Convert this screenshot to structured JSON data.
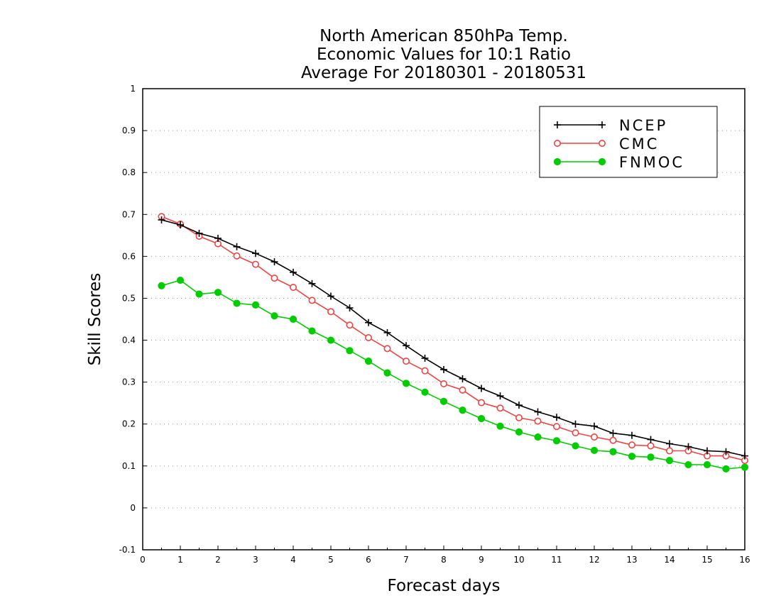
{
  "chart_data": {
    "type": "line",
    "title_lines": [
      "North American 850hPa Temp.",
      "Economic Values for 10:1 Ratio",
      "Average For 20180301 - 20180531"
    ],
    "xlabel": "Forecast days",
    "ylabel": "Skill Scores",
    "xlim": [
      0,
      16
    ],
    "ylim": [
      -0.1,
      1
    ],
    "xticks": [
      0,
      1,
      2,
      3,
      4,
      5,
      6,
      7,
      8,
      9,
      10,
      11,
      12,
      13,
      14,
      15,
      16
    ],
    "xtick_labels": [
      "0",
      "1",
      "2",
      "3",
      "4",
      "5",
      "6",
      "7",
      "8",
      "9",
      "10",
      "11",
      "12",
      "13",
      "14",
      "15",
      "16"
    ],
    "yticks": [
      -0.1,
      0,
      0.1,
      0.2,
      0.3,
      0.4,
      0.5,
      0.6,
      0.7,
      0.8,
      0.9,
      1
    ],
    "ytick_labels": [
      "-0.1",
      "0",
      "0.1",
      "0.2",
      "0.3",
      "0.4",
      "0.5",
      "0.6",
      "0.7",
      "0.8",
      "0.9",
      "1"
    ],
    "grid": true,
    "legend_position": "top-right",
    "x": [
      0.5,
      1,
      1.5,
      2,
      2.5,
      3,
      3.5,
      4,
      4.5,
      5,
      5.5,
      6,
      6.5,
      7,
      7.5,
      8,
      8.5,
      9,
      9.5,
      10,
      10.5,
      11,
      11.5,
      12,
      12.5,
      13,
      13.5,
      14,
      14.5,
      15,
      15.5,
      16
    ],
    "series": [
      {
        "name": "NCEP",
        "color": "#000000",
        "marker": "plus",
        "values": [
          0.687,
          0.675,
          0.655,
          0.643,
          0.623,
          0.607,
          0.587,
          0.562,
          0.535,
          0.505,
          0.477,
          0.442,
          0.418,
          0.387,
          0.357,
          0.33,
          0.308,
          0.285,
          0.267,
          0.245,
          0.229,
          0.216,
          0.2,
          0.195,
          0.178,
          0.173,
          0.163,
          0.153,
          0.146,
          0.136,
          0.134,
          0.124
        ]
      },
      {
        "name": "CMC",
        "color": "#ee4444",
        "marker": "open-circle",
        "values": [
          0.695,
          0.677,
          0.648,
          0.63,
          0.601,
          0.581,
          0.548,
          0.526,
          0.495,
          0.468,
          0.436,
          0.406,
          0.38,
          0.35,
          0.327,
          0.296,
          0.281,
          0.251,
          0.238,
          0.215,
          0.207,
          0.194,
          0.179,
          0.169,
          0.161,
          0.15,
          0.148,
          0.136,
          0.136,
          0.124,
          0.124,
          0.113
        ]
      },
      {
        "name": "FNMOC",
        "color": "#00cc00",
        "marker": "filled-circle",
        "values": [
          0.53,
          0.543,
          0.51,
          0.514,
          0.488,
          0.484,
          0.458,
          0.45,
          0.422,
          0.4,
          0.375,
          0.35,
          0.322,
          0.297,
          0.276,
          0.254,
          0.233,
          0.213,
          0.195,
          0.181,
          0.169,
          0.16,
          0.148,
          0.137,
          0.134,
          0.123,
          0.121,
          0.113,
          0.103,
          0.103,
          0.093,
          0.097
        ]
      }
    ]
  }
}
